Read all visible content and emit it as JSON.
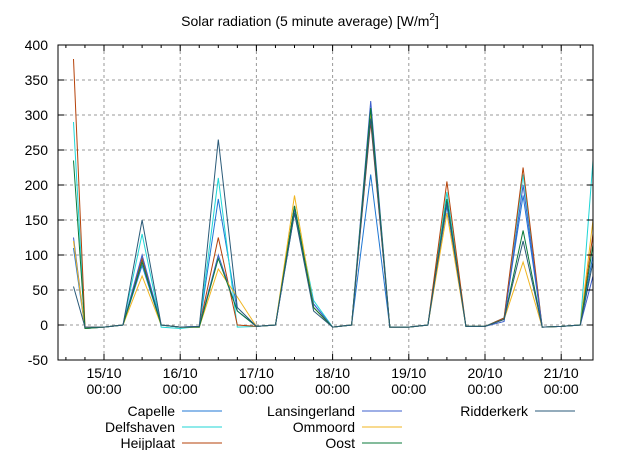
{
  "chart_data": {
    "type": "line",
    "title": "Solar radiation (5 minute average) [W/m",
    "title_sup": "2",
    "title_end": "]",
    "xlabel": "",
    "ylabel": "",
    "ylim": [
      -50,
      400
    ],
    "yticks": [
      "400",
      "350",
      "300",
      "250",
      "200",
      "150",
      "100",
      "50",
      "0",
      "-50"
    ],
    "ytick_values": [
      400,
      350,
      300,
      250,
      200,
      150,
      100,
      50,
      0,
      -50
    ],
    "xlim": [
      -0.6,
      6.45
    ],
    "xticks": [
      {
        "value": 0,
        "date": "15/10",
        "time": "00:00"
      },
      {
        "value": 1,
        "date": "16/10",
        "time": "00:00"
      },
      {
        "value": 2,
        "date": "17/10",
        "time": "00:00"
      },
      {
        "value": 3,
        "date": "18/10",
        "time": "00:00"
      },
      {
        "value": 4,
        "date": "19/10",
        "time": "00:00"
      },
      {
        "value": 5,
        "date": "20/10",
        "time": "00:00"
      },
      {
        "value": 6,
        "date": "21/10",
        "time": "00:00"
      }
    ],
    "x_unit": "days since 15/10 00:00",
    "grid": true,
    "legend_position": "bottom",
    "x": [
      -0.4,
      -0.25,
      0,
      0.25,
      0.5,
      0.75,
      1,
      1.25,
      1.5,
      1.75,
      2,
      2.25,
      2.5,
      2.75,
      3,
      3.25,
      3.5,
      3.75,
      4,
      4.25,
      4.5,
      4.75,
      5,
      5.25,
      5.5,
      5.75,
      6,
      6.25,
      6.45
    ],
    "series": [
      {
        "name": "Capelle",
        "color": "#1f77d4",
        "values": [
          110,
          -5,
          -3,
          0,
          85,
          0,
          -3,
          -2,
          180,
          20,
          -2,
          0,
          160,
          30,
          -3,
          0,
          215,
          -3,
          -3,
          0,
          170,
          -2,
          -2,
          10,
          185,
          -3,
          -2,
          0,
          100
        ]
      },
      {
        "name": "Delfshaven",
        "color": "#1fd6d6",
        "values": [
          290,
          -5,
          -3,
          0,
          130,
          -3,
          -5,
          -2,
          210,
          -3,
          -2,
          0,
          170,
          35,
          -3,
          0,
          300,
          -3,
          -3,
          0,
          190,
          -2,
          -2,
          10,
          215,
          -3,
          -2,
          0,
          235
        ]
      },
      {
        "name": "Heijplaat",
        "color": "#b5420a",
        "values": [
          380,
          -3,
          -3,
          0,
          95,
          0,
          -3,
          -3,
          125,
          0,
          -2,
          0,
          170,
          25,
          -3,
          0,
          290,
          -3,
          -3,
          0,
          205,
          -2,
          -2,
          10,
          225,
          -3,
          -2,
          0,
          130
        ]
      },
      {
        "name": "Lansingerland",
        "color": "#3c5fcc",
        "values": [
          125,
          -5,
          -3,
          0,
          100,
          0,
          -3,
          -2,
          100,
          20,
          -2,
          0,
          165,
          30,
          -3,
          0,
          320,
          -3,
          -3,
          0,
          175,
          -2,
          -2,
          5,
          200,
          -3,
          -2,
          0,
          70
        ]
      },
      {
        "name": "Ommoord",
        "color": "#f0b51f",
        "values": [
          120,
          -5,
          -3,
          0,
          70,
          0,
          -3,
          -3,
          80,
          40,
          -2,
          0,
          185,
          25,
          -3,
          0,
          305,
          -3,
          -3,
          0,
          160,
          -2,
          -2,
          8,
          90,
          -3,
          -2,
          0,
          150
        ]
      },
      {
        "name": "Oost",
        "color": "#0a7a3a",
        "values": [
          235,
          -5,
          -3,
          0,
          90,
          0,
          -3,
          -3,
          95,
          20,
          -2,
          0,
          170,
          25,
          -3,
          0,
          310,
          -3,
          -3,
          0,
          180,
          -2,
          -2,
          8,
          135,
          -3,
          -2,
          0,
          115
        ]
      },
      {
        "name": "Ridderkerk",
        "color": "#2a5a78",
        "values": [
          55,
          -3,
          -3,
          0,
          150,
          0,
          -3,
          -2,
          265,
          25,
          -2,
          0,
          160,
          20,
          -3,
          0,
          295,
          -3,
          -3,
          0,
          175,
          -2,
          -2,
          8,
          120,
          -3,
          -2,
          0,
          90
        ]
      }
    ]
  }
}
